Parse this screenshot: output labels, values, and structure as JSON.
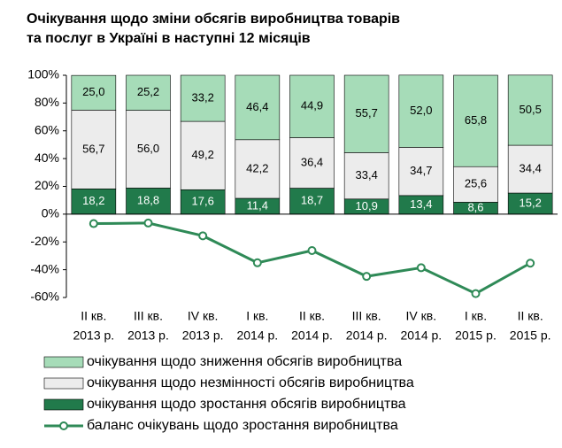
{
  "chart_data": {
    "type": "stacked-bar-line",
    "title": [
      "Очікування щодо зміни обсягів виробництва товарів",
      "та послуг в Україні в наступні 12 місяців"
    ],
    "categories": [
      [
        "II кв.",
        "2013 р."
      ],
      [
        "III кв.",
        "2013 р."
      ],
      [
        "IV кв.",
        "2013 р."
      ],
      [
        "I кв.",
        "2014 р."
      ],
      [
        "II кв.",
        "2014 р."
      ],
      [
        "III кв.",
        "2014 р."
      ],
      [
        "IV кв.",
        "2014 р."
      ],
      [
        "I кв.",
        "2015 р."
      ],
      [
        "II кв.",
        "2015 р."
      ]
    ],
    "series": [
      {
        "name": "очікування щодо зростання обсягів виробництва",
        "color": "#217a4b",
        "type": "bar",
        "values": [
          18.2,
          18.8,
          17.6,
          11.4,
          18.7,
          10.9,
          13.4,
          8.6,
          15.2
        ],
        "value_labels": [
          "18,2",
          "18,8",
          "17,6",
          "11,4",
          "18,7",
          "10,9",
          "13,4",
          "8,6",
          "15,2"
        ]
      },
      {
        "name": "очікування щодо незмінності обсягів виробництва",
        "color": "#ececec",
        "type": "bar",
        "values": [
          56.7,
          56.0,
          49.2,
          42.2,
          36.4,
          33.4,
          34.7,
          25.6,
          34.4
        ],
        "value_labels": [
          "56,7",
          "56,0",
          "49,2",
          "42,2",
          "36,4",
          "33,4",
          "34,7",
          "25,6",
          "34,4"
        ]
      },
      {
        "name": "очікування щодо зниження обсягів виробництва",
        "color": "#a6dcb8",
        "type": "bar",
        "values": [
          25.0,
          25.2,
          33.2,
          46.4,
          44.9,
          55.7,
          52.0,
          65.8,
          50.5
        ],
        "value_labels": [
          "25,0",
          "25,2",
          "33,2",
          "46,4",
          "44,9",
          "55,7",
          "52,0",
          "65,8",
          "50,5"
        ]
      },
      {
        "name": "баланс очікувань щодо зростання виробництва",
        "color": "#2f8a57",
        "type": "line",
        "values": [
          -6.8,
          -6.4,
          -15.6,
          -35.0,
          -26.2,
          -44.8,
          -38.6,
          -57.2,
          -35.3
        ]
      }
    ],
    "ylim": [
      -60,
      100
    ],
    "yticks": [
      {
        "value": -60,
        "label": "-60%"
      },
      {
        "value": -40,
        "label": "-40%"
      },
      {
        "value": -20,
        "label": "-20%"
      },
      {
        "value": 0,
        "label": "0%"
      },
      {
        "value": 20,
        "label": "20%"
      },
      {
        "value": 40,
        "label": "40%"
      },
      {
        "value": 60,
        "label": "60%"
      },
      {
        "value": 80,
        "label": "80%"
      },
      {
        "value": 100,
        "label": "100%"
      }
    ]
  }
}
